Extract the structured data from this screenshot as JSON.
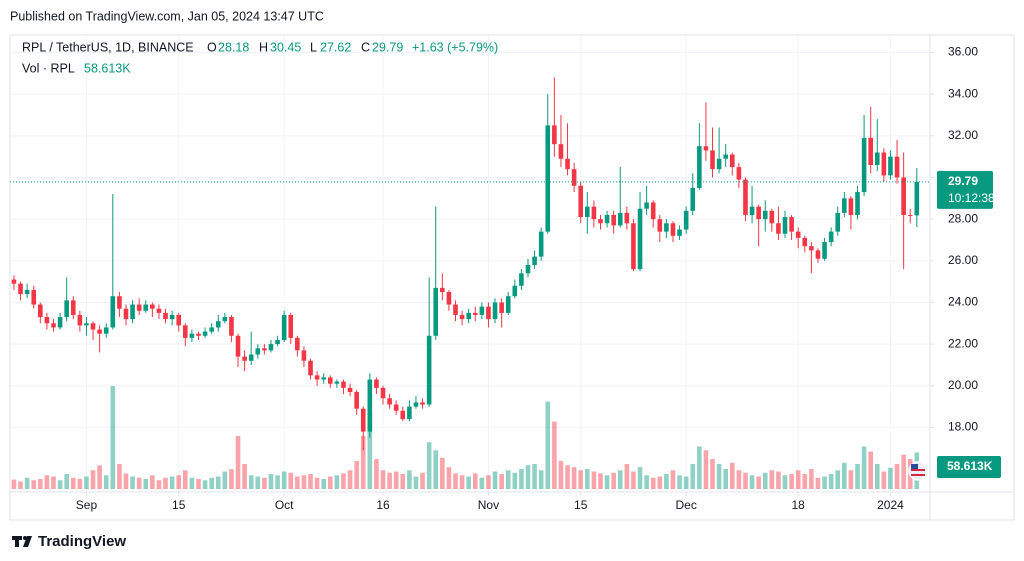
{
  "header": {
    "published": "Published on TradingView.com, Jan 05, 2024 13:47 UTC"
  },
  "footer": {
    "brand": "TradingView"
  },
  "chart_data": {
    "type": "candlestick",
    "ohlc_letters": [
      "O",
      "H",
      "L",
      "C"
    ],
    "change_label": "+1.63 (+5.79%)",
    "countdown": "10:12:38",
    "up_color": "#089981",
    "down_color": "#f23645",
    "grid": true,
    "series": [
      {
        "name": "RPL / TetherUS, 1D, BINANCE",
        "open": [
          25.1,
          24.9,
          24.4,
          24.6,
          23.9,
          23.3,
          23.0,
          22.8,
          23.3,
          24.1,
          23.4,
          22.9,
          23.0,
          22.7,
          22.5,
          22.8,
          24.3,
          23.7,
          23.2,
          23.9,
          23.6,
          23.9,
          23.7,
          23.5,
          23.2,
          23.4,
          22.9,
          22.3,
          22.5,
          22.4,
          22.6,
          22.8,
          23.1,
          23.3,
          22.4,
          21.4,
          21.2,
          21.5,
          21.8,
          21.7,
          22.0,
          22.2,
          23.4,
          22.3,
          21.7,
          21.2,
          20.5,
          20.3,
          20.4,
          20.1,
          20.2,
          19.9,
          19.7,
          18.9,
          17.8,
          20.3,
          19.9,
          19.4,
          19.1,
          18.8,
          18.4,
          19.0,
          19.2,
          19.1,
          22.4,
          24.7,
          24.5,
          23.9,
          23.4,
          23.2,
          23.5,
          23.4,
          23.8,
          23.2,
          24.0,
          23.5,
          24.3,
          24.8,
          25.4,
          25.8,
          26.2,
          27.4,
          32.5,
          31.6,
          30.9,
          30.4,
          29.6,
          28.1,
          28.6,
          28.0,
          27.8,
          28.2,
          27.7,
          28.3,
          27.8,
          25.6,
          28.5,
          28.8,
          28.0,
          27.4,
          27.8,
          27.2,
          27.5,
          28.4,
          29.5,
          31.5,
          31.3,
          30.4,
          30.9,
          31.1,
          30.5,
          29.9,
          28.2,
          28.6,
          28.0,
          28.4,
          27.8,
          27.3,
          28.1,
          27.4,
          27.1,
          26.7,
          26.5,
          26.1,
          26.9,
          27.4,
          28.3,
          29.0,
          28.2,
          29.3,
          31.9,
          30.6,
          31.2,
          30.1,
          31.0,
          30.0,
          28.2,
          28.18
        ],
        "high": [
          25.3,
          25.0,
          24.9,
          24.8,
          24.0,
          23.5,
          23.2,
          23.5,
          25.2,
          24.3,
          23.6,
          23.3,
          23.1,
          22.9,
          23.0,
          29.2,
          24.5,
          23.9,
          24.1,
          24.2,
          24.1,
          24.0,
          23.9,
          23.7,
          23.6,
          23.5,
          23.0,
          22.7,
          22.6,
          22.8,
          23.0,
          23.4,
          23.5,
          23.4,
          22.5,
          21.7,
          22.6,
          22.0,
          22.0,
          22.2,
          22.4,
          23.6,
          23.5,
          22.4,
          21.9,
          21.3,
          20.7,
          20.6,
          20.5,
          20.3,
          20.3,
          20.1,
          19.8,
          19.0,
          20.6,
          20.4,
          20.0,
          19.6,
          19.3,
          19.0,
          19.3,
          19.5,
          19.4,
          25.2,
          28.6,
          25.4,
          24.6,
          24.1,
          23.6,
          23.7,
          23.8,
          24.0,
          24.0,
          24.2,
          24.2,
          24.5,
          25.1,
          25.6,
          26.1,
          26.5,
          27.6,
          34.0,
          34.8,
          33.0,
          32.6,
          30.7,
          29.8,
          29.3,
          28.9,
          28.2,
          28.4,
          28.4,
          30.5,
          28.6,
          28.0,
          29.3,
          29.6,
          28.9,
          28.2,
          28.0,
          27.9,
          27.7,
          28.6,
          30.2,
          32.6,
          33.6,
          32.4,
          32.4,
          31.6,
          31.2,
          30.7,
          30.0,
          29.6,
          28.7,
          28.9,
          28.5,
          28.6,
          28.4,
          28.2,
          27.6,
          27.2,
          26.9,
          26.6,
          27.1,
          27.6,
          28.6,
          29.3,
          29.1,
          29.6,
          33.0,
          33.4,
          32.8,
          31.4,
          31.3,
          31.8,
          31.2,
          28.5,
          30.45
        ],
        "low": [
          24.6,
          24.1,
          24.2,
          23.7,
          23.0,
          22.7,
          22.6,
          22.7,
          23.1,
          23.2,
          22.6,
          22.4,
          22.2,
          21.6,
          22.3,
          22.7,
          23.3,
          22.9,
          23.0,
          23.4,
          23.5,
          23.3,
          23.2,
          23.0,
          22.9,
          22.6,
          21.9,
          22.1,
          22.2,
          22.3,
          22.5,
          22.6,
          23.0,
          22.1,
          20.9,
          20.7,
          21.0,
          21.3,
          21.5,
          21.6,
          21.9,
          22.1,
          22.0,
          21.4,
          20.9,
          20.3,
          20.0,
          20.1,
          19.9,
          19.9,
          19.6,
          19.5,
          18.6,
          16.9,
          17.5,
          19.6,
          19.1,
          18.9,
          18.6,
          18.3,
          18.3,
          18.9,
          18.9,
          19.0,
          22.2,
          24.1,
          23.6,
          23.1,
          22.9,
          23.0,
          23.1,
          23.2,
          22.8,
          23.0,
          22.8,
          23.4,
          24.2,
          24.6,
          25.2,
          25.6,
          26.0,
          27.3,
          31.0,
          30.5,
          30.1,
          29.3,
          27.8,
          27.3,
          27.6,
          27.5,
          27.6,
          27.3,
          27.6,
          27.5,
          25.5,
          25.5,
          28.2,
          27.6,
          26.9,
          27.1,
          26.9,
          27.0,
          27.3,
          28.2,
          29.4,
          30.8,
          30.0,
          30.2,
          30.5,
          30.1,
          29.5,
          27.9,
          27.8,
          26.7,
          27.4,
          27.4,
          27.0,
          27.1,
          27.0,
          26.6,
          26.4,
          25.4,
          25.9,
          26.0,
          26.7,
          27.2,
          28.1,
          27.5,
          28.0,
          29.1,
          30.2,
          30.3,
          29.8,
          29.9,
          29.7,
          25.6,
          27.8,
          27.62
        ],
        "close": [
          24.9,
          24.4,
          24.6,
          23.9,
          23.3,
          23.0,
          22.8,
          23.3,
          24.1,
          23.4,
          22.9,
          23.0,
          22.7,
          22.5,
          22.8,
          24.3,
          23.7,
          23.2,
          23.9,
          23.6,
          23.9,
          23.7,
          23.5,
          23.2,
          23.4,
          22.9,
          22.3,
          22.5,
          22.4,
          22.6,
          22.8,
          23.1,
          23.3,
          22.4,
          21.4,
          21.2,
          21.5,
          21.8,
          21.7,
          22.0,
          22.2,
          23.4,
          22.3,
          21.7,
          21.2,
          20.5,
          20.3,
          20.4,
          20.1,
          20.2,
          19.9,
          19.7,
          18.9,
          17.8,
          20.3,
          19.9,
          19.4,
          19.1,
          18.8,
          18.4,
          19.0,
          19.2,
          19.1,
          22.4,
          24.7,
          24.5,
          23.9,
          23.4,
          23.2,
          23.5,
          23.4,
          23.8,
          23.2,
          24.0,
          23.5,
          24.3,
          24.8,
          25.4,
          25.8,
          26.2,
          27.4,
          32.5,
          31.6,
          30.9,
          30.4,
          29.6,
          28.1,
          28.6,
          28.0,
          27.8,
          28.2,
          27.7,
          28.3,
          27.8,
          25.6,
          28.5,
          28.8,
          28.0,
          27.4,
          27.8,
          27.2,
          27.5,
          28.4,
          29.5,
          31.5,
          31.3,
          30.4,
          30.9,
          31.1,
          30.5,
          29.9,
          28.2,
          28.6,
          28.0,
          28.4,
          27.8,
          27.3,
          28.1,
          27.4,
          27.1,
          26.7,
          26.5,
          26.1,
          26.9,
          27.4,
          28.3,
          29.0,
          28.2,
          29.3,
          31.9,
          30.6,
          31.2,
          30.1,
          31.0,
          30.0,
          28.2,
          28.18,
          29.79
        ]
      }
    ],
    "volume": {
      "name": "Vol · RPL",
      "last_label": "58.613K",
      "values": [
        15000,
        12000,
        18000,
        14000,
        16000,
        22000,
        20000,
        14000,
        24000,
        18000,
        16000,
        20000,
        30000,
        38000,
        22000,
        165000,
        40000,
        25000,
        20000,
        18000,
        16000,
        22000,
        14000,
        18000,
        20000,
        22000,
        30000,
        18000,
        16000,
        14000,
        18000,
        20000,
        28000,
        32000,
        85000,
        40000,
        22000,
        20000,
        18000,
        24000,
        22000,
        28000,
        26000,
        20000,
        22000,
        24000,
        18000,
        16000,
        20000,
        22000,
        25000,
        30000,
        45000,
        85000,
        125000,
        48000,
        30000,
        26000,
        28000,
        24000,
        30000,
        20000,
        26000,
        75000,
        62000,
        50000,
        35000,
        25000,
        22000,
        20000,
        25000,
        18000,
        22000,
        28000,
        24000,
        30000,
        26000,
        32000,
        38000,
        40000,
        30000,
        140000,
        108000,
        45000,
        38000,
        35000,
        30000,
        32000,
        28000,
        25000,
        22000,
        26000,
        30000,
        40000,
        28000,
        35000,
        22000,
        18000,
        20000,
        24000,
        30000,
        22000,
        20000,
        40000,
        68000,
        62000,
        48000,
        40000,
        32000,
        42000,
        30000,
        26000,
        22000,
        20000,
        26000,
        30000,
        28000,
        22000,
        24000,
        30000,
        24000,
        32000,
        18000,
        20000,
        24000,
        30000,
        42000,
        30000,
        40000,
        68000,
        60000,
        40000,
        28000,
        34000,
        40000,
        55000,
        48000,
        58613
      ]
    },
    "ylim": [
      14.9,
      36.6
    ],
    "yticks": [
      {
        "value": 18,
        "label": "18.00"
      },
      {
        "value": 20,
        "label": "20.00"
      },
      {
        "value": 22,
        "label": "22.00"
      },
      {
        "value": 24,
        "label": "24.00"
      },
      {
        "value": 26,
        "label": "26.00"
      },
      {
        "value": 28,
        "label": "28.00"
      },
      {
        "value": 30,
        "label": "30.00"
      },
      {
        "value": 32,
        "label": "32.00"
      },
      {
        "value": 34,
        "label": "34.00"
      },
      {
        "value": 36,
        "label": "36.00"
      }
    ],
    "xlim": [
      -0.6,
      139
    ],
    "xticks": [
      {
        "value": 11,
        "label": "Sep"
      },
      {
        "value": 25,
        "label": "15"
      },
      {
        "value": 41,
        "label": "Oct"
      },
      {
        "value": 56,
        "label": "16"
      },
      {
        "value": 72,
        "label": "Nov"
      },
      {
        "value": 86,
        "label": "15"
      },
      {
        "value": 102,
        "label": "Dec"
      },
      {
        "value": 119,
        "label": "18"
      },
      {
        "value": 133,
        "label": "2024"
      }
    ]
  }
}
